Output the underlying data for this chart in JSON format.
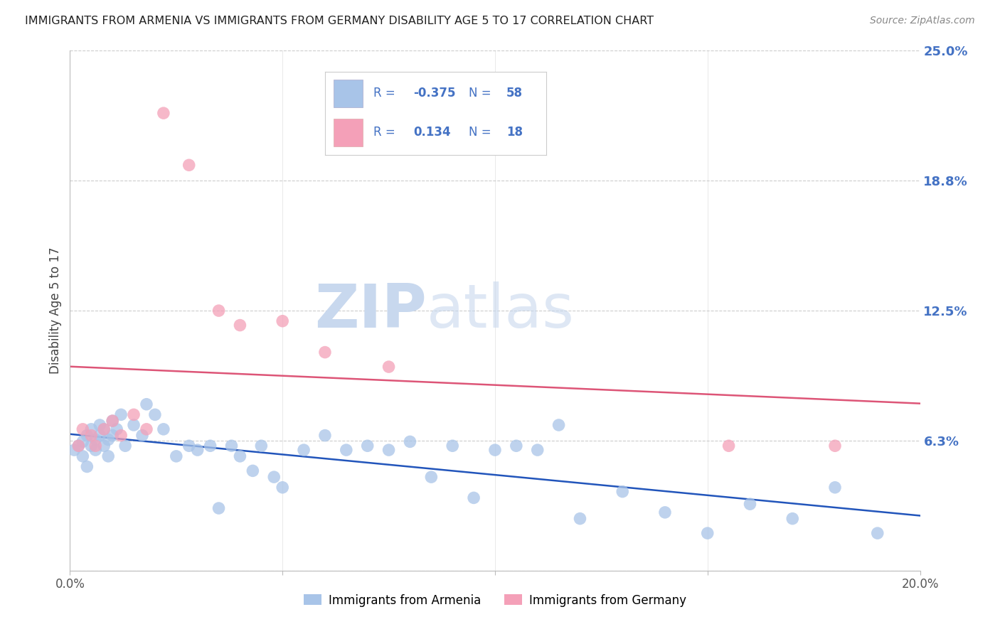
{
  "title": "IMMIGRANTS FROM ARMENIA VS IMMIGRANTS FROM GERMANY DISABILITY AGE 5 TO 17 CORRELATION CHART",
  "source": "Source: ZipAtlas.com",
  "ylabel": "Disability Age 5 to 17",
  "xlim": [
    0.0,
    0.2
  ],
  "ylim": [
    0.0,
    0.25
  ],
  "yticks": [
    0.0,
    0.0625,
    0.125,
    0.1875,
    0.25
  ],
  "ytick_labels": [
    "",
    "6.3%",
    "12.5%",
    "18.8%",
    "25.0%"
  ],
  "xticks": [
    0.0,
    0.05,
    0.1,
    0.15,
    0.2
  ],
  "xtick_labels": [
    "0.0%",
    "",
    "",
    "",
    "20.0%"
  ],
  "armenia_R": -0.375,
  "armenia_N": 58,
  "germany_R": 0.134,
  "germany_N": 18,
  "armenia_color": "#a8c4e8",
  "germany_color": "#f4a0b8",
  "armenia_line_color": "#2255bb",
  "germany_line_color": "#dd5577",
  "legend_text_color": "#4472c4",
  "background_color": "#ffffff",
  "grid_color": "#cccccc",
  "title_color": "#222222",
  "axis_label_color": "#444444",
  "right_tick_color": "#4472c4",
  "watermark_color": "#dde8f5",
  "armenia_x": [
    0.001,
    0.002,
    0.003,
    0.003,
    0.004,
    0.004,
    0.005,
    0.005,
    0.006,
    0.006,
    0.007,
    0.007,
    0.008,
    0.008,
    0.009,
    0.009,
    0.01,
    0.01,
    0.011,
    0.012,
    0.013,
    0.015,
    0.017,
    0.018,
    0.02,
    0.022,
    0.025,
    0.028,
    0.03,
    0.033,
    0.035,
    0.038,
    0.04,
    0.043,
    0.045,
    0.048,
    0.05,
    0.055,
    0.06,
    0.065,
    0.07,
    0.075,
    0.08,
    0.085,
    0.09,
    0.095,
    0.1,
    0.105,
    0.11,
    0.115,
    0.12,
    0.13,
    0.14,
    0.15,
    0.16,
    0.17,
    0.18,
    0.19
  ],
  "armenia_y": [
    0.058,
    0.06,
    0.055,
    0.062,
    0.05,
    0.065,
    0.06,
    0.068,
    0.058,
    0.063,
    0.065,
    0.07,
    0.06,
    0.068,
    0.055,
    0.063,
    0.072,
    0.065,
    0.068,
    0.075,
    0.06,
    0.07,
    0.065,
    0.08,
    0.075,
    0.068,
    0.055,
    0.06,
    0.058,
    0.06,
    0.03,
    0.06,
    0.055,
    0.048,
    0.06,
    0.045,
    0.04,
    0.058,
    0.065,
    0.058,
    0.06,
    0.058,
    0.062,
    0.045,
    0.06,
    0.035,
    0.058,
    0.06,
    0.058,
    0.07,
    0.025,
    0.038,
    0.028,
    0.018,
    0.032,
    0.025,
    0.04,
    0.018
  ],
  "germany_x": [
    0.002,
    0.003,
    0.005,
    0.006,
    0.008,
    0.01,
    0.012,
    0.015,
    0.018,
    0.022,
    0.028,
    0.035,
    0.04,
    0.05,
    0.06,
    0.075,
    0.155,
    0.18
  ],
  "germany_y": [
    0.06,
    0.068,
    0.065,
    0.06,
    0.068,
    0.072,
    0.065,
    0.075,
    0.068,
    0.22,
    0.195,
    0.125,
    0.118,
    0.12,
    0.105,
    0.098,
    0.06,
    0.06
  ]
}
